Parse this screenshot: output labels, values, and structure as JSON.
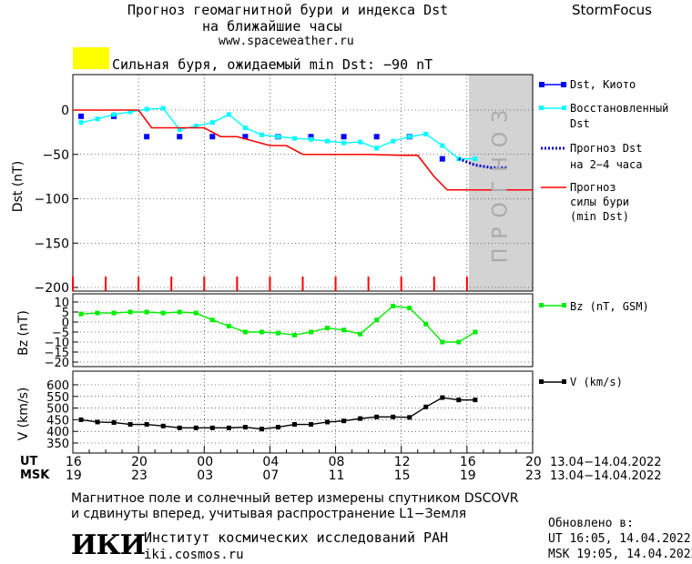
{
  "header": {
    "title_line1": "Прогноз геомагнитной бури и индекса Dst",
    "title_line2": "на ближайшие часы",
    "site": "www.spaceweather.ru",
    "brand": "StormFocus",
    "storm_label": "Сильная буря, ожидаемый min Dst: −90 nT",
    "storm_color": "#ffff00"
  },
  "footer": {
    "line1": "Магнитное поле и солнечный ветер измерены спутником DSCOVR",
    "line2": "и сдвинуты вперед, учитывая распространение L1−Земля",
    "logo": "ИКИ",
    "institute": "Институт космических исследований РАН",
    "institute_site": "iki.cosmos.ru",
    "updated_label": "Обновлено в:",
    "updated_ut": "UT  16:05, 14.04.2022",
    "updated_msk": "MSK 19:05, 14.04.2022"
  },
  "chart_data": [
    {
      "type": "line",
      "ylabel": "Dst (nT)",
      "ylim": [
        -200,
        30
      ],
      "yticks": [
        0,
        -50,
        -100,
        -150,
        -200
      ],
      "forecast_band_label": "ПРОГНОЗ",
      "forecast_band_x": [
        16,
        20
      ],
      "series": [
        {
          "name": "Dst, Киото",
          "color": "#0000ff",
          "style": "squares",
          "x": [
            16.5,
            17.5,
            18.5,
            19.5,
            20.5,
            21.5,
            22.5,
            23.5,
            24.5,
            25.5,
            26.5,
            27.5,
            28.5,
            29.5,
            30.5,
            31.5,
            32.5,
            33.5,
            34.5,
            35.5,
            36.5,
            37.5,
            38.5,
            39.5
          ],
          "y": [
            -7,
            null,
            -7,
            null,
            -30,
            null,
            -30,
            null,
            -30,
            null,
            -30,
            null,
            -30,
            null,
            -30,
            null,
            -30,
            null,
            -30,
            null,
            -30,
            null,
            -55,
            null
          ]
        },
        {
          "name": "Восстановленный Dst",
          "color": "#00ffff",
          "style": "line+squares",
          "x": [
            16.5,
            17.5,
            18.5,
            19.5,
            20.5,
            21.5,
            22.5,
            23.5,
            24.5,
            25.5,
            26.5,
            27.5,
            28.5,
            29.5,
            30.5,
            31.5,
            32.5,
            33.5,
            34.5,
            35.5,
            36.5,
            37.5,
            38.5,
            39.5,
            40.5
          ],
          "y": [
            -14,
            -10,
            -5,
            -2,
            1,
            2,
            -22,
            -18,
            -14,
            -5,
            -20,
            -28,
            -30,
            -32,
            -33,
            -35,
            -37,
            -36,
            -43,
            -35,
            -30,
            -27,
            -40,
            -55,
            -55
          ]
        },
        {
          "name": "Прогноз Dst на 2-4 часа",
          "color": "#0000cc",
          "style": "dotted",
          "x": [
            39.5,
            40.5,
            41.5,
            42.5
          ],
          "y": [
            -55,
            -62,
            -65,
            -65
          ]
        },
        {
          "name": "Прогноз силы бури (min Dst)",
          "color": "#ff0000",
          "style": "step",
          "x": [
            16,
            20,
            20.8,
            24,
            25,
            26,
            28,
            29,
            30,
            32,
            33,
            34,
            36,
            37,
            38,
            38.8,
            40,
            44
          ],
          "y": [
            0,
            0,
            -20,
            -20,
            -30,
            -30,
            -40,
            -40,
            -50,
            -50,
            -50,
            -50,
            -51,
            -51,
            -75,
            -90,
            -90,
            -90
          ]
        }
      ]
    },
    {
      "type": "line",
      "ylabel": "Bz (nT)",
      "ylim": [
        -20,
        12
      ],
      "yticks": [
        10,
        5,
        0,
        -5,
        -10,
        -15,
        -20
      ],
      "series": [
        {
          "name": "Bz (nT, GSM)",
          "color": "#00ee00",
          "x": [
            16.5,
            17.5,
            18.5,
            19.5,
            20.5,
            21.5,
            22.5,
            23.5,
            24.5,
            25.5,
            26.5,
            27.5,
            28.5,
            29.5,
            30.5,
            31.5,
            32.5,
            33.5,
            34.5,
            35.5,
            36.5,
            37.5,
            38.5,
            39.5,
            40.5
          ],
          "y": [
            4,
            4.5,
            4.5,
            5,
            5,
            4.5,
            5,
            4.5,
            1,
            -2,
            -5,
            -5,
            -5.5,
            -6.5,
            -5,
            -3,
            -4,
            -6,
            1,
            8,
            7,
            -1,
            -10,
            -10,
            -5
          ]
        }
      ]
    },
    {
      "type": "line",
      "ylabel": "V (km/s)",
      "ylim": [
        320,
        650
      ],
      "yticks": [
        600,
        550,
        500,
        450,
        400,
        350
      ],
      "series": [
        {
          "name": "V (km/s)",
          "color": "#000000",
          "x": [
            16.5,
            17.5,
            18.5,
            19.5,
            20.5,
            21.5,
            22.5,
            23.5,
            24.5,
            25.5,
            26.5,
            27.5,
            28.5,
            29.5,
            30.5,
            31.5,
            32.5,
            33.5,
            34.5,
            35.5,
            36.5,
            37.5,
            38.5,
            39.5,
            40.5
          ],
          "y": [
            450,
            440,
            438,
            430,
            430,
            423,
            415,
            415,
            415,
            415,
            418,
            410,
            418,
            430,
            430,
            440,
            445,
            455,
            462,
            462,
            460,
            505,
            545,
            535,
            535
          ]
        }
      ]
    }
  ],
  "x_axis": {
    "ut_label": "UT",
    "msk_label": "MSK",
    "ut_ticks": [
      "16",
      "20",
      "00",
      "04",
      "08",
      "12",
      "16",
      "20"
    ],
    "msk_ticks": [
      "19",
      "23",
      "03",
      "07",
      "11",
      "15",
      "19",
      "23"
    ],
    "ut_range": "13.04−14.04.2022",
    "msk_range": "13.04−14.04.2022"
  },
  "legend": {
    "dst": "Dst, Киото",
    "rec_1": "Восстановленный",
    "rec_2": "Dst",
    "fc_1": "Прогноз Dst",
    "fc_2": "на 2−4 часа",
    "st_1": "Прогноз",
    "st_2": "силы бури",
    "st_3": "(min Dst)",
    "bz": "Bz (nT, GSM)",
    "v": "V (km/s)"
  }
}
